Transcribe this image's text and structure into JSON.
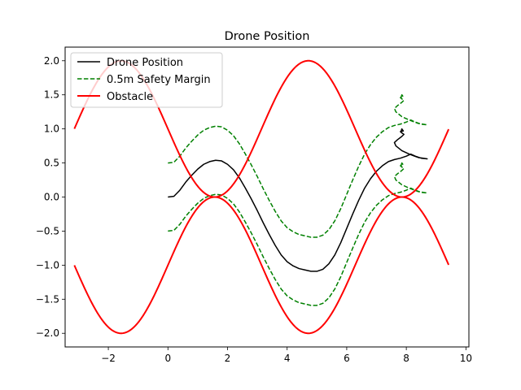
{
  "chart_data": {
    "type": "line",
    "title": "Drone Position",
    "xlabel": "",
    "ylabel": "",
    "xlim": [
      -3.45,
      10.1
    ],
    "ylim": [
      -2.2,
      2.2
    ],
    "x_ticks": [
      -2,
      0,
      2,
      4,
      6,
      8,
      10
    ],
    "x_tick_labels": [
      "−2",
      "0",
      "2",
      "4",
      "6",
      "8",
      "10"
    ],
    "y_ticks": [
      2.0,
      1.5,
      1.0,
      0.5,
      0.0,
      -0.5,
      -1.0,
      -1.5,
      -2.0
    ],
    "y_tick_labels": [
      "2.0",
      "1.5",
      "1.0",
      "0.5",
      "0.0",
      "−0.5",
      "−1.0",
      "−1.5",
      "−2.0"
    ],
    "grid": false,
    "legend_position": "upper-left",
    "legend": [
      {
        "label": "Drone Position",
        "color": "#000000",
        "style": "solid"
      },
      {
        "label": "0.5m Safety Margin",
        "color": "#008000",
        "style": "dashed"
      },
      {
        "label": "Obstacle",
        "color": "#ff0000",
        "style": "solid-thick"
      }
    ],
    "series": [
      {
        "name": "Drone Position",
        "color": "#000000",
        "style": "solid",
        "points": [
          [
            0,
            0
          ],
          [
            0.2,
            0.01
          ],
          [
            0.4,
            0.1
          ],
          [
            0.6,
            0.22
          ],
          [
            0.8,
            0.32
          ],
          [
            1,
            0.41
          ],
          [
            1.2,
            0.48
          ],
          [
            1.4,
            0.52
          ],
          [
            1.6,
            0.54
          ],
          [
            1.8,
            0.53
          ],
          [
            2,
            0.48
          ],
          [
            2.2,
            0.4
          ],
          [
            2.4,
            0.28
          ],
          [
            2.6,
            0.13
          ],
          [
            2.8,
            -0.03
          ],
          [
            3,
            -0.2
          ],
          [
            3.2,
            -0.38
          ],
          [
            3.4,
            -0.55
          ],
          [
            3.6,
            -0.71
          ],
          [
            3.8,
            -0.85
          ],
          [
            4,
            -0.95
          ],
          [
            4.2,
            -1.01
          ],
          [
            4.4,
            -1.05
          ],
          [
            4.6,
            -1.07
          ],
          [
            4.8,
            -1.09
          ],
          [
            5,
            -1.09
          ],
          [
            5.2,
            -1.06
          ],
          [
            5.4,
            -0.98
          ],
          [
            5.6,
            -0.85
          ],
          [
            5.8,
            -0.67
          ],
          [
            6,
            -0.46
          ],
          [
            6.2,
            -0.25
          ],
          [
            6.4,
            -0.05
          ],
          [
            6.6,
            0.13
          ],
          [
            6.8,
            0.27
          ],
          [
            7,
            0.38
          ],
          [
            7.2,
            0.46
          ],
          [
            7.4,
            0.52
          ],
          [
            7.6,
            0.55
          ],
          [
            7.8,
            0.57
          ],
          [
            8,
            0.6
          ],
          [
            8.15,
            0.63
          ],
          [
            8.3,
            0.6
          ],
          [
            8.5,
            0.57
          ],
          [
            8.7,
            0.56
          ],
          [
            8.4,
            0.58
          ],
          [
            8.1,
            0.63
          ],
          [
            7.85,
            0.68
          ],
          [
            7.65,
            0.75
          ],
          [
            7.6,
            0.8
          ],
          [
            7.7,
            0.84
          ],
          [
            7.85,
            0.89
          ],
          [
            7.92,
            0.92
          ],
          [
            7.85,
            0.94
          ],
          [
            7.8,
            0.96
          ],
          [
            7.9,
            0.97
          ],
          [
            7.85,
            1.0
          ],
          [
            7.82,
            0.96
          ]
        ]
      },
      {
        "name": "0.5m Safety Margin",
        "color": "#008000",
        "style": "dashed",
        "points": [
          [
            0,
            0.5
          ],
          [
            0.2,
            0.51
          ],
          [
            0.4,
            0.6
          ],
          [
            0.6,
            0.72
          ],
          [
            0.8,
            0.82
          ],
          [
            1,
            0.91
          ],
          [
            1.2,
            0.98
          ],
          [
            1.4,
            1.02
          ],
          [
            1.6,
            1.04
          ],
          [
            1.8,
            1.03
          ],
          [
            2,
            0.98
          ],
          [
            2.2,
            0.9
          ],
          [
            2.4,
            0.78
          ],
          [
            2.6,
            0.63
          ],
          [
            2.8,
            0.47
          ],
          [
            3,
            0.3
          ],
          [
            3.2,
            0.12
          ],
          [
            3.4,
            -0.05
          ],
          [
            3.6,
            -0.21
          ],
          [
            3.8,
            -0.35
          ],
          [
            4,
            -0.45
          ],
          [
            4.2,
            -0.51
          ],
          [
            4.4,
            -0.55
          ],
          [
            4.6,
            -0.57
          ],
          [
            4.8,
            -0.59
          ],
          [
            5,
            -0.59
          ],
          [
            5.2,
            -0.56
          ],
          [
            5.4,
            -0.48
          ],
          [
            5.6,
            -0.35
          ],
          [
            5.8,
            -0.17
          ],
          [
            6,
            0.04
          ],
          [
            6.2,
            0.25
          ],
          [
            6.4,
            0.45
          ],
          [
            6.6,
            0.63
          ],
          [
            6.8,
            0.77
          ],
          [
            7,
            0.88
          ],
          [
            7.2,
            0.96
          ],
          [
            7.4,
            1.02
          ],
          [
            7.6,
            1.05
          ],
          [
            7.8,
            1.07
          ],
          [
            8,
            1.1
          ],
          [
            8.15,
            1.13
          ],
          [
            8.3,
            1.1
          ],
          [
            8.5,
            1.07
          ],
          [
            8.7,
            1.06
          ],
          [
            8.4,
            1.08
          ],
          [
            8.1,
            1.13
          ],
          [
            7.85,
            1.18
          ],
          [
            7.65,
            1.25
          ],
          [
            7.6,
            1.3
          ],
          [
            7.7,
            1.34
          ],
          [
            7.85,
            1.39
          ],
          [
            7.92,
            1.42
          ],
          [
            7.85,
            1.44
          ],
          [
            7.8,
            1.46
          ],
          [
            7.9,
            1.47
          ],
          [
            7.85,
            1.5
          ],
          [
            7.82,
            1.46
          ]
        ]
      },
      {
        "name": "0.5m Safety Margin",
        "color": "#008000",
        "style": "dashed",
        "points": [
          [
            0,
            -0.5
          ],
          [
            0.2,
            -0.49
          ],
          [
            0.4,
            -0.4
          ],
          [
            0.6,
            -0.28
          ],
          [
            0.8,
            -0.18
          ],
          [
            1,
            -0.09
          ],
          [
            1.2,
            -0.02
          ],
          [
            1.4,
            0.02
          ],
          [
            1.6,
            0.04
          ],
          [
            1.8,
            0.03
          ],
          [
            2,
            -0.02
          ],
          [
            2.2,
            -0.1
          ],
          [
            2.4,
            -0.22
          ],
          [
            2.6,
            -0.37
          ],
          [
            2.8,
            -0.53
          ],
          [
            3,
            -0.7
          ],
          [
            3.2,
            -0.88
          ],
          [
            3.4,
            -1.05
          ],
          [
            3.6,
            -1.21
          ],
          [
            3.8,
            -1.35
          ],
          [
            4,
            -1.45
          ],
          [
            4.2,
            -1.51
          ],
          [
            4.4,
            -1.55
          ],
          [
            4.6,
            -1.57
          ],
          [
            4.8,
            -1.59
          ],
          [
            5,
            -1.59
          ],
          [
            5.2,
            -1.56
          ],
          [
            5.4,
            -1.48
          ],
          [
            5.6,
            -1.35
          ],
          [
            5.8,
            -1.17
          ],
          [
            6,
            -0.96
          ],
          [
            6.2,
            -0.75
          ],
          [
            6.4,
            -0.55
          ],
          [
            6.6,
            -0.37
          ],
          [
            6.8,
            -0.23
          ],
          [
            7,
            -0.12
          ],
          [
            7.2,
            -0.04
          ],
          [
            7.4,
            0.02
          ],
          [
            7.6,
            0.05
          ],
          [
            7.8,
            0.07
          ],
          [
            8,
            0.1
          ],
          [
            8.15,
            0.13
          ],
          [
            8.3,
            0.1
          ],
          [
            8.5,
            0.07
          ],
          [
            8.7,
            0.06
          ],
          [
            8.4,
            0.08
          ],
          [
            8.1,
            0.13
          ],
          [
            7.85,
            0.18
          ],
          [
            7.65,
            0.25
          ],
          [
            7.6,
            0.3
          ],
          [
            7.7,
            0.34
          ],
          [
            7.85,
            0.39
          ],
          [
            7.92,
            0.42
          ],
          [
            7.85,
            0.44
          ],
          [
            7.8,
            0.46
          ],
          [
            7.9,
            0.47
          ],
          [
            7.85,
            0.5
          ],
          [
            7.82,
            0.46
          ]
        ]
      },
      {
        "name": "Obstacle",
        "color": "#ff0000",
        "style": "solid-thick",
        "function": "1 - sin(x)",
        "x_range": [
          -3.14,
          9.42
        ],
        "samples": 300
      },
      {
        "name": "Obstacle",
        "color": "#ff0000",
        "style": "solid-thick",
        "function": "sin(x) - 1",
        "x_range": [
          -3.14,
          9.42
        ],
        "samples": 300
      }
    ]
  }
}
